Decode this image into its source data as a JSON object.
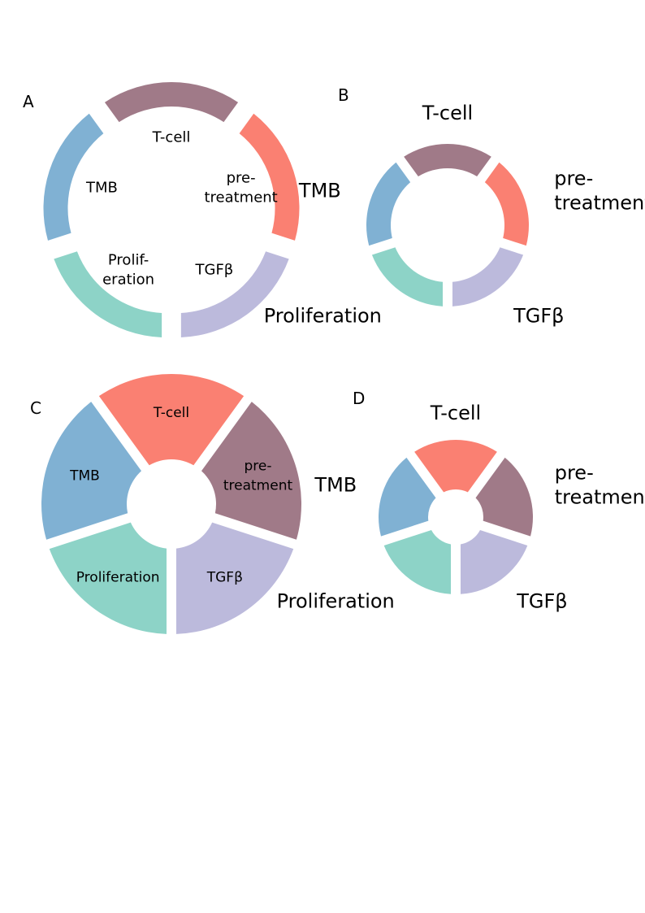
{
  "chart_data": [
    {
      "panel_label": "A",
      "type": "pie",
      "style": "donut",
      "categories": [
        "T-cell",
        "pre-treatment",
        "TGFβ",
        "Proliferation",
        "TMB"
      ],
      "label_lines": [
        [
          "T-cell"
        ],
        [
          "pre-",
          "treatment"
        ],
        [
          "TGFβ"
        ],
        [
          "Prolif-",
          "eration"
        ],
        [
          "TMB"
        ]
      ],
      "values": [
        1,
        1,
        1,
        1,
        1
      ],
      "colors": [
        "#a07a88",
        "#fa8072",
        "#bcbadc",
        "#8dd3c7",
        "#80b1d3"
      ],
      "label_placement": "inside"
    },
    {
      "panel_label": "B",
      "type": "pie",
      "style": "donut",
      "categories": [
        "T-cell",
        "pre-treatment",
        "TGFβ",
        "Proliferation",
        "TMB"
      ],
      "label_lines": [
        [
          "T-cell"
        ],
        [
          "pre-",
          "treatment"
        ],
        [
          "TGFβ"
        ],
        [
          "Proliferation"
        ],
        [
          "TMB"
        ]
      ],
      "values": [
        1,
        1,
        1,
        1,
        1
      ],
      "colors": [
        "#a07a88",
        "#fa8072",
        "#bcbadc",
        "#8dd3c7",
        "#80b1d3"
      ],
      "label_placement": "outside"
    },
    {
      "panel_label": "C",
      "type": "pie",
      "style": "donut",
      "categories": [
        "T-cell",
        "pre-treatment",
        "TGFβ",
        "Proliferation",
        "TMB"
      ],
      "label_lines": [
        [
          "T-cell"
        ],
        [
          "pre-",
          "treatment"
        ],
        [
          "TGFβ"
        ],
        [
          "Proliferation"
        ],
        [
          "TMB"
        ]
      ],
      "values": [
        1,
        1,
        1,
        1,
        1
      ],
      "colors": [
        "#fa8072",
        "#a07a88",
        "#bcbadc",
        "#8dd3c7",
        "#80b1d3"
      ],
      "label_placement": "inside"
    },
    {
      "panel_label": "D",
      "type": "pie",
      "style": "donut",
      "categories": [
        "T-cell",
        "pre-treatment",
        "TGFβ",
        "Proliferation",
        "TMB"
      ],
      "label_lines": [
        [
          "T-cell"
        ],
        [
          "pre-",
          "treatment"
        ],
        [
          "TGFβ"
        ],
        [
          "Proliferation"
        ],
        [
          "TMB"
        ]
      ],
      "values": [
        1,
        1,
        1,
        1,
        1
      ],
      "colors": [
        "#fa8072",
        "#a07a88",
        "#bcbadc",
        "#8dd3c7",
        "#80b1d3"
      ],
      "label_placement": "outside"
    }
  ]
}
